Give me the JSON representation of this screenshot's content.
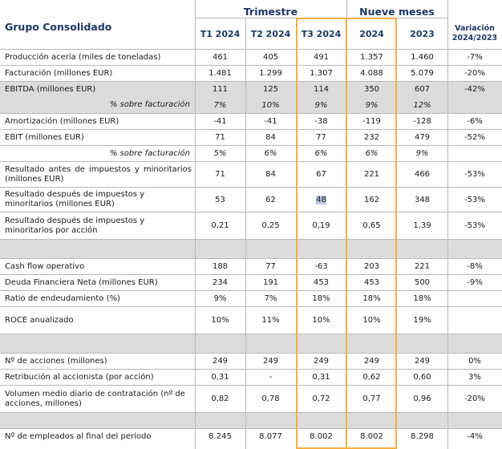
{
  "header": {
    "group_title": "Grupo Consolidado",
    "trimestre": "Trimestre",
    "nueve_meses": "Nueve meses",
    "columns": [
      "T1 2024",
      "T2 2024",
      "T3 2024",
      "2024",
      "2023"
    ],
    "variacion_line1": "Variación",
    "variacion_line2": "2024/2023"
  },
  "rows": [
    {
      "label": "Producción acería (miles de toneladas)",
      "t1": "461",
      "t2": "405",
      "t3": "491",
      "y2024": "1.357",
      "y2023": "1.460",
      "var": "-7%"
    },
    {
      "label": "Facturación (millones EUR)",
      "t1": "1.481",
      "t2": "1.299",
      "t3": "1.307",
      "y2024": "4.088",
      "y2023": "5.079",
      "var": "-20%"
    },
    {
      "label": "EBITDA (millones EUR)",
      "t1": "111",
      "t2": "125",
      "t3": "114",
      "y2024": "350",
      "y2023": "607",
      "var": "-42%"
    },
    {
      "label": "% sobre facturación",
      "t1": "7%",
      "t2": "10%",
      "t3": "9%",
      "y2024": "9%",
      "y2023": "12%",
      "var": ""
    },
    {
      "label": "Amortización (millones EUR)",
      "t1": "-41",
      "t2": "-41",
      "t3": "-38",
      "y2024": "-119",
      "y2023": "-128",
      "var": "-6%"
    },
    {
      "label": "EBIT (millones EUR)",
      "t1": "71",
      "t2": "84",
      "t3": "77",
      "y2024": "232",
      "y2023": "479",
      "var": "-52%"
    },
    {
      "label": "% sobre facturación",
      "t1": "5%",
      "t2": "6%",
      "t3": "6%",
      "y2024": "6%",
      "y2023": "9%",
      "var": ""
    },
    {
      "label": "Resultado antes de impuestos y minoritarios (millones EUR)",
      "t1": "71",
      "t2": "84",
      "t3": "67",
      "y2024": "221",
      "y2023": "466",
      "var": "-53%"
    },
    {
      "label": "Resultado después de impuestos y minoritarios (millones EUR)",
      "t1": "53",
      "t2": "62",
      "t3": "48",
      "y2024": "162",
      "y2023": "348",
      "var": "-53%"
    },
    {
      "label": "Resultado después de impuestos y minoritarios por acción",
      "t1": "0,21",
      "t2": "0,25",
      "t3": "0,19",
      "y2024": "0,65",
      "y2023": "1,39",
      "var": "-53%"
    },
    {
      "label": "Cash flow operativo",
      "t1": "188",
      "t2": "77",
      "t3": "-63",
      "y2024": "203",
      "y2023": "221",
      "var": "-8%"
    },
    {
      "label": "Deuda Financiera Neta (millones EUR)",
      "t1": "234",
      "t2": "191",
      "t3": "453",
      "y2024": "453",
      "y2023": "500",
      "var": "-9%"
    },
    {
      "label": "Ratio de endeudamiento (%)",
      "t1": "9%",
      "t2": "7%",
      "t3": "18%",
      "y2024": "18%",
      "y2023": "18%",
      "var": ""
    },
    {
      "label": "ROCE anualizado",
      "t1": "10%",
      "t2": "11%",
      "t3": "10%",
      "y2024": "10%",
      "y2023": "19%",
      "var": ""
    },
    {
      "label": "Nº de acciones (millones)",
      "t1": "249",
      "t2": "249",
      "t3": "249",
      "y2024": "249",
      "y2023": "249",
      "var": "0%"
    },
    {
      "label": "Retribución al accionista (por acción)",
      "t1": "0,31",
      "t2": "-",
      "t3": "0,31",
      "y2024": "0,62",
      "y2023": "0,60",
      "var": "3%"
    },
    {
      "label": "Volumen medio diario de contratación (nº de acciones, millones)",
      "t1": "0,82",
      "t2": "0,78",
      "t3": "0,72",
      "y2024": "0,77",
      "y2023": "0,96",
      "var": "-20%"
    },
    {
      "label": "Nº de empleados al final del periodo",
      "t1": "8.245",
      "t2": "8.077",
      "t3": "8.002",
      "y2024": "8.002",
      "y2023": "8.298",
      "var": "-4%"
    }
  ],
  "colors": {
    "header_text": "#1f3864",
    "shade": "#dcdcdc",
    "highlight_border": "#f5b041",
    "selection": "#b7c9e6"
  }
}
